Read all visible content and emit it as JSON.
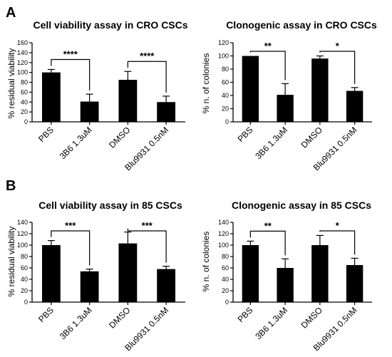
{
  "panels": [
    {
      "letter": "A"
    },
    {
      "letter": "B"
    }
  ],
  "chart_data": [
    {
      "panel": "A",
      "type": "bar",
      "title": "Cell viability assay in CRO CSCs",
      "xlabel": "",
      "ylabel": "% residual viability",
      "ylim": [
        0,
        160
      ],
      "yticks": [
        0,
        20,
        40,
        60,
        80,
        100,
        120,
        140,
        160
      ],
      "categories": [
        "PBS",
        "3B6 1.3uM",
        "DMSO",
        "Blu9931 0.5nM"
      ],
      "values": [
        100,
        41,
        85,
        40
      ],
      "errors": [
        6,
        15,
        17,
        12
      ],
      "bar_color": "#000000",
      "grid": false,
      "significance": [
        {
          "from": 0,
          "to": 1,
          "label": "****"
        },
        {
          "from": 2,
          "to": 3,
          "label": "****"
        }
      ]
    },
    {
      "panel": "A",
      "type": "bar",
      "title": "Clonogenic assay in CRO CSCs",
      "xlabel": "",
      "ylabel": "% n. of colonies",
      "ylim": [
        0,
        120
      ],
      "yticks": [
        0,
        20,
        40,
        60,
        80,
        100,
        120
      ],
      "categories": [
        "PBS",
        "3B6 1.3uM",
        "DMSO",
        "Blu9931 0.5nM"
      ],
      "values": [
        100,
        41,
        96,
        47
      ],
      "errors": [
        0,
        17,
        4,
        5
      ],
      "bar_color": "#000000",
      "grid": false,
      "significance": [
        {
          "from": 0,
          "to": 1,
          "label": "**"
        },
        {
          "from": 2,
          "to": 3,
          "label": "*"
        }
      ]
    },
    {
      "panel": "B",
      "type": "bar",
      "title": "Cell viability assay in 85 CSCs",
      "xlabel": "",
      "ylabel": "% residual viability",
      "ylim": [
        0,
        140
      ],
      "yticks": [
        0,
        20,
        40,
        60,
        80,
        100,
        120,
        140
      ],
      "categories": [
        "PBS",
        "3B6 1.3uM",
        "DMSO",
        "Blu9931 0.5nM"
      ],
      "values": [
        100,
        54,
        103,
        58
      ],
      "errors": [
        8,
        4,
        20,
        5
      ],
      "bar_color": "#000000",
      "grid": false,
      "significance": [
        {
          "from": 0,
          "to": 1,
          "label": "***"
        },
        {
          "from": 2,
          "to": 3,
          "label": "***"
        }
      ]
    },
    {
      "panel": "B",
      "type": "bar",
      "title": "Clonogenic assay in 85 CSCs",
      "xlabel": "",
      "ylabel": "% n. of colonies",
      "ylim": [
        0,
        140
      ],
      "yticks": [
        0,
        20,
        40,
        60,
        80,
        100,
        120,
        140
      ],
      "categories": [
        "PBS",
        "3B6 1.3uM",
        "DMSO",
        "Blu9931 0.5nM"
      ],
      "values": [
        100,
        60,
        100,
        65
      ],
      "errors": [
        7,
        16,
        17,
        12
      ],
      "bar_color": "#000000",
      "grid": false,
      "significance": [
        {
          "from": 0,
          "to": 1,
          "label": "**"
        },
        {
          "from": 2,
          "to": 3,
          "label": "*"
        }
      ]
    }
  ]
}
